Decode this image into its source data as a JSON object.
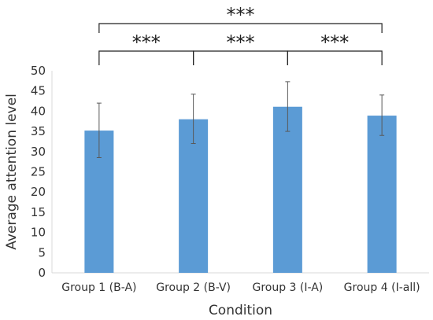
{
  "chart_data": {
    "type": "bar",
    "categories": [
      "Group 1 (B-A)",
      "Group 2 (B-V)",
      "Group 3 (I-A)",
      "Group 4 (I-all)"
    ],
    "values": [
      35.2,
      38.0,
      41.1,
      38.9
    ],
    "error_bars": [
      {
        "low": 28.5,
        "high": 42.0
      },
      {
        "low": 32.0,
        "high": 44.2
      },
      {
        "low": 35.0,
        "high": 47.3
      },
      {
        "low": 34.0,
        "high": 44.0
      }
    ],
    "xlabel": "Condition",
    "ylabel": "Average attention level",
    "ylim": [
      0,
      50
    ],
    "yticks": [
      "0",
      "5",
      "10",
      "15",
      "20",
      "25",
      "30",
      "35",
      "40",
      "45",
      "50"
    ],
    "grid": false,
    "bar_color": "#5b9bd5",
    "significance": [
      {
        "from": 0,
        "to": 3,
        "label": "***"
      },
      {
        "from": 0,
        "to": 1,
        "label": "***"
      },
      {
        "from": 1,
        "to": 2,
        "label": "***"
      },
      {
        "from": 2,
        "to": 3,
        "label": "***"
      }
    ]
  }
}
